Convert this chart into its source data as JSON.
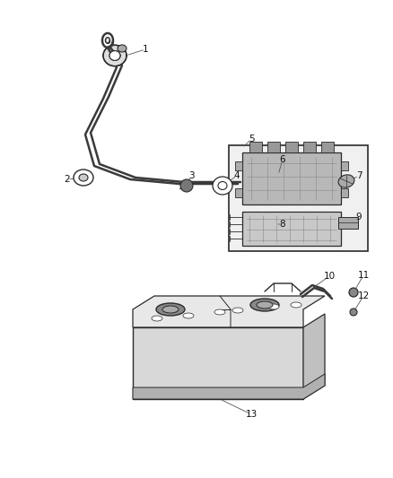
{
  "bg_color": "#ffffff",
  "line_color": "#2a2a2a",
  "label_color": "#111111",
  "figsize": [
    4.38,
    5.33
  ],
  "dpi": 100,
  "xlim": [
    0,
    438
  ],
  "ylim": [
    0,
    533
  ],
  "wire_color": "#3a3a3a",
  "box_fill": "#f0f0f0",
  "component_fill": "#b8b8b8",
  "battery_fill": "#d8d8d8",
  "battery_top_fill": "#e8e8e8",
  "battery_side_fill": "#c0c0c0"
}
